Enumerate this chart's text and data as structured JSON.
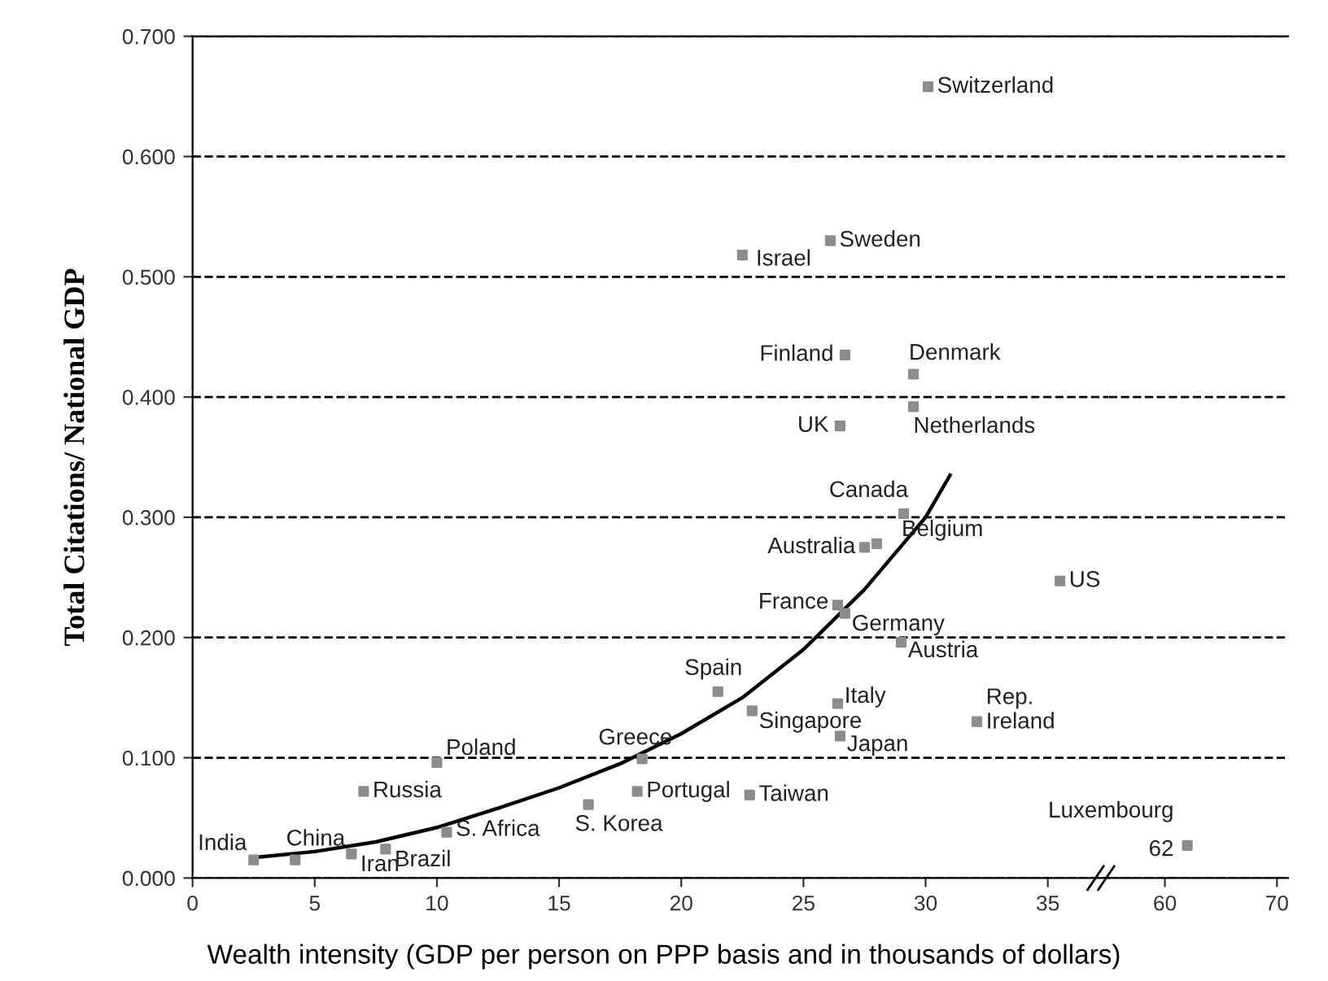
{
  "chart_data": [
    {
      "type": "scatter",
      "xlabel": "Wealth intensity (GDP per person on PPP basis and in thousands of dollars)",
      "ylabel": "Total Citations/ National GDP",
      "series": [
        {
          "color": "#8c8c8c",
          "marker": "square",
          "x": [
            30.1,
            26.1,
            22.5,
            26.7,
            29.5,
            26.5,
            29.5,
            29.1,
            27.5,
            28.0,
            35.5,
            26.4,
            26.7,
            29.0,
            21.5,
            22.9,
            26.4,
            26.5,
            32.1,
            18.4,
            10.0,
            7.0,
            18.2,
            22.8,
            16.2,
            2.5,
            4.2,
            6.5,
            7.9,
            10.4
          ],
          "values": [
            0.658,
            0.53,
            0.518,
            0.435,
            0.419,
            0.376,
            0.392,
            0.303,
            0.275,
            0.278,
            0.247,
            0.227,
            0.22,
            0.196,
            0.155,
            0.139,
            0.145,
            0.118,
            0.13,
            0.099,
            0.096,
            0.072,
            0.072,
            0.069,
            0.061,
            0.015,
            0.015,
            0.02,
            0.024,
            0.038
          ]
        },
        {
          "type": "line",
          "color": "#000000",
          "line_style": "solid",
          "x": [
            2.5,
            5,
            7.5,
            10,
            12.5,
            15,
            17.5,
            20,
            22.5,
            25,
            27.5,
            30,
            31
          ],
          "values": [
            0.017,
            0.022,
            0.03,
            0.042,
            0.058,
            0.075,
            0.095,
            0.12,
            0.15,
            0.19,
            0.24,
            0.3,
            0.335
          ]
        }
      ],
      "annotations": [
        {
          "text": "Switzerland",
          "x": 30.1,
          "y": 0.658
        },
        {
          "text": "Sweden",
          "x": 26.1,
          "y": 0.53
        },
        {
          "text": "Israel",
          "x": 22.5,
          "y": 0.518
        },
        {
          "text": "Finland",
          "x": 26.7,
          "y": 0.435
        },
        {
          "text": "Denmark",
          "x": 29.5,
          "y": 0.419
        },
        {
          "text": "UK",
          "x": 26.5,
          "y": 0.376
        },
        {
          "text": "Netherlands",
          "x": 29.5,
          "y": 0.392
        },
        {
          "text": "Canada",
          "x": 29.1,
          "y": 0.303
        },
        {
          "text": "Australia",
          "x": 27.5,
          "y": 0.275
        },
        {
          "text": "Belgium",
          "x": 28.0,
          "y": 0.278
        },
        {
          "text": "US",
          "x": 35.5,
          "y": 0.247
        },
        {
          "text": "France",
          "x": 26.4,
          "y": 0.227
        },
        {
          "text": "Germany",
          "x": 26.7,
          "y": 0.22
        },
        {
          "text": "Austria",
          "x": 29.0,
          "y": 0.196
        },
        {
          "text": "Spain",
          "x": 21.5,
          "y": 0.155
        },
        {
          "text": "Singapore",
          "x": 22.9,
          "y": 0.139
        },
        {
          "text": "Italy",
          "x": 26.4,
          "y": 0.145
        },
        {
          "text": "Japan",
          "x": 26.5,
          "y": 0.118
        },
        {
          "text": "Rep.\nIreland",
          "x": 32.1,
          "y": 0.13
        },
        {
          "text": "Greece",
          "x": 18.4,
          "y": 0.099
        },
        {
          "text": "Poland",
          "x": 10.0,
          "y": 0.096
        },
        {
          "text": "Russia",
          "x": 7.0,
          "y": 0.072
        },
        {
          "text": "Portugal",
          "x": 18.2,
          "y": 0.072
        },
        {
          "text": "Taiwan",
          "x": 22.8,
          "y": 0.069
        },
        {
          "text": "S. Korea",
          "x": 16.2,
          "y": 0.061
        },
        {
          "text": "India",
          "x": 2.5,
          "y": 0.015
        },
        {
          "text": "China",
          "x": 4.2,
          "y": 0.015
        },
        {
          "text": "Iran",
          "x": 6.5,
          "y": 0.02
        },
        {
          "text": "Brazil",
          "x": 7.9,
          "y": 0.024
        },
        {
          "text": "S. Africa",
          "x": 10.4,
          "y": 0.038
        }
      ],
      "xlim": [
        0,
        37.5
      ],
      "xticks": [
        0,
        5,
        10,
        15,
        20,
        25,
        30,
        35
      ],
      "ylim": [
        0,
        0.7
      ],
      "yticks": [
        {
          "value": 0,
          "label": "0.000"
        },
        {
          "value": 0.1,
          "label": "0.100"
        },
        {
          "value": 0.2,
          "label": "0.200"
        },
        {
          "value": 0.3,
          "label": "0.300"
        },
        {
          "value": 0.4,
          "label": "0.400"
        },
        {
          "value": 0.5,
          "label": "0.500"
        },
        {
          "value": 0.6,
          "label": "0.600"
        },
        {
          "value": 0.7,
          "label": "0.700"
        }
      ],
      "grid": "y"
    },
    {
      "type": "scatter",
      "series": [
        {
          "color": "#8c8c8c",
          "marker": "square",
          "x": [
            62
          ],
          "values": [
            0.027
          ]
        }
      ],
      "annotations": [
        {
          "text": "Luxembourg",
          "x": 62,
          "y": 0.027
        },
        {
          "text": "62",
          "x": 62,
          "y": 0.027
        }
      ],
      "xlim": [
        55,
        71
      ],
      "xticks": [
        60,
        70
      ],
      "ylim": [
        0,
        0.7
      ],
      "yticks": [
        {
          "value": 0,
          "label": "0.000"
        },
        {
          "value": 0.1,
          "label": "0.100"
        },
        {
          "value": 0.2,
          "label": "0.200"
        },
        {
          "value": 0.3,
          "label": "0.300"
        },
        {
          "value": 0.4,
          "label": "0.400"
        },
        {
          "value": 0.5,
          "label": "0.500"
        },
        {
          "value": 0.6,
          "label": "0.600"
        },
        {
          "value": 0.7,
          "label": "0.700"
        }
      ],
      "grid": "y",
      "tick_labels": "x"
    }
  ]
}
